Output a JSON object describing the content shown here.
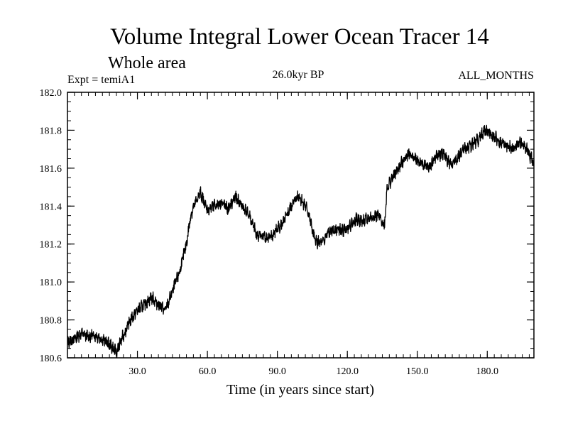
{
  "chart_data": {
    "type": "line",
    "title": "Volume Integral Lower Ocean Tracer 14",
    "subtitle": "Whole area",
    "experiment_label": "Expt = temiA1",
    "period_label": "26.0kyr BP",
    "months_label": "ALL_MONTHS",
    "xlabel": "Time (in years since start)",
    "ylabel": "",
    "xlim": [
      0,
      200
    ],
    "ylim": [
      180.6,
      182.0
    ],
    "x_ticks": [
      30,
      60,
      90,
      120,
      150,
      180
    ],
    "x_tick_labels": [
      "30.0",
      "60.0",
      "90.0",
      "120.0",
      "150.0",
      "180.0"
    ],
    "y_ticks": [
      180.6,
      180.8,
      181.0,
      181.2,
      181.4,
      181.6,
      181.8,
      182.0
    ],
    "y_tick_labels": [
      "180.6",
      "180.8",
      "181.0",
      "181.2",
      "181.4",
      "181.6",
      "181.8",
      "182.0"
    ],
    "grid": false,
    "series": [
      {
        "name": "Lower Ocean Tracer 14",
        "color": "#000000",
        "x": [
          0,
          3,
          6,
          9,
          12,
          15,
          18,
          21,
          24,
          27,
          30,
          33,
          36,
          39,
          42,
          45,
          48,
          51,
          53,
          55,
          57,
          60,
          63,
          66,
          69,
          72,
          75,
          78,
          81,
          84,
          87,
          90,
          93,
          96,
          99,
          101,
          103,
          106,
          109,
          112,
          115,
          118,
          121,
          124,
          127,
          130,
          133,
          136,
          137,
          140,
          143,
          146,
          149,
          152,
          155,
          158,
          161,
          164,
          167,
          170,
          173,
          176,
          179,
          182,
          185,
          188,
          191,
          194,
          197,
          200
        ],
        "values": [
          180.68,
          180.7,
          180.73,
          180.71,
          180.72,
          180.7,
          180.67,
          180.63,
          180.72,
          180.8,
          180.85,
          180.88,
          180.92,
          180.88,
          180.85,
          180.95,
          181.05,
          181.2,
          181.36,
          181.42,
          181.47,
          181.38,
          181.4,
          181.42,
          181.38,
          181.45,
          181.4,
          181.35,
          181.25,
          181.24,
          181.23,
          181.28,
          181.32,
          181.4,
          181.46,
          181.42,
          181.38,
          181.22,
          181.2,
          181.26,
          181.28,
          181.27,
          181.3,
          181.33,
          181.32,
          181.34,
          181.35,
          181.3,
          181.5,
          181.56,
          181.62,
          181.68,
          181.65,
          181.62,
          181.6,
          181.66,
          181.68,
          181.62,
          181.65,
          181.7,
          181.72,
          181.75,
          181.8,
          181.78,
          181.74,
          181.72,
          181.7,
          181.74,
          181.7,
          181.62
        ]
      }
    ]
  }
}
